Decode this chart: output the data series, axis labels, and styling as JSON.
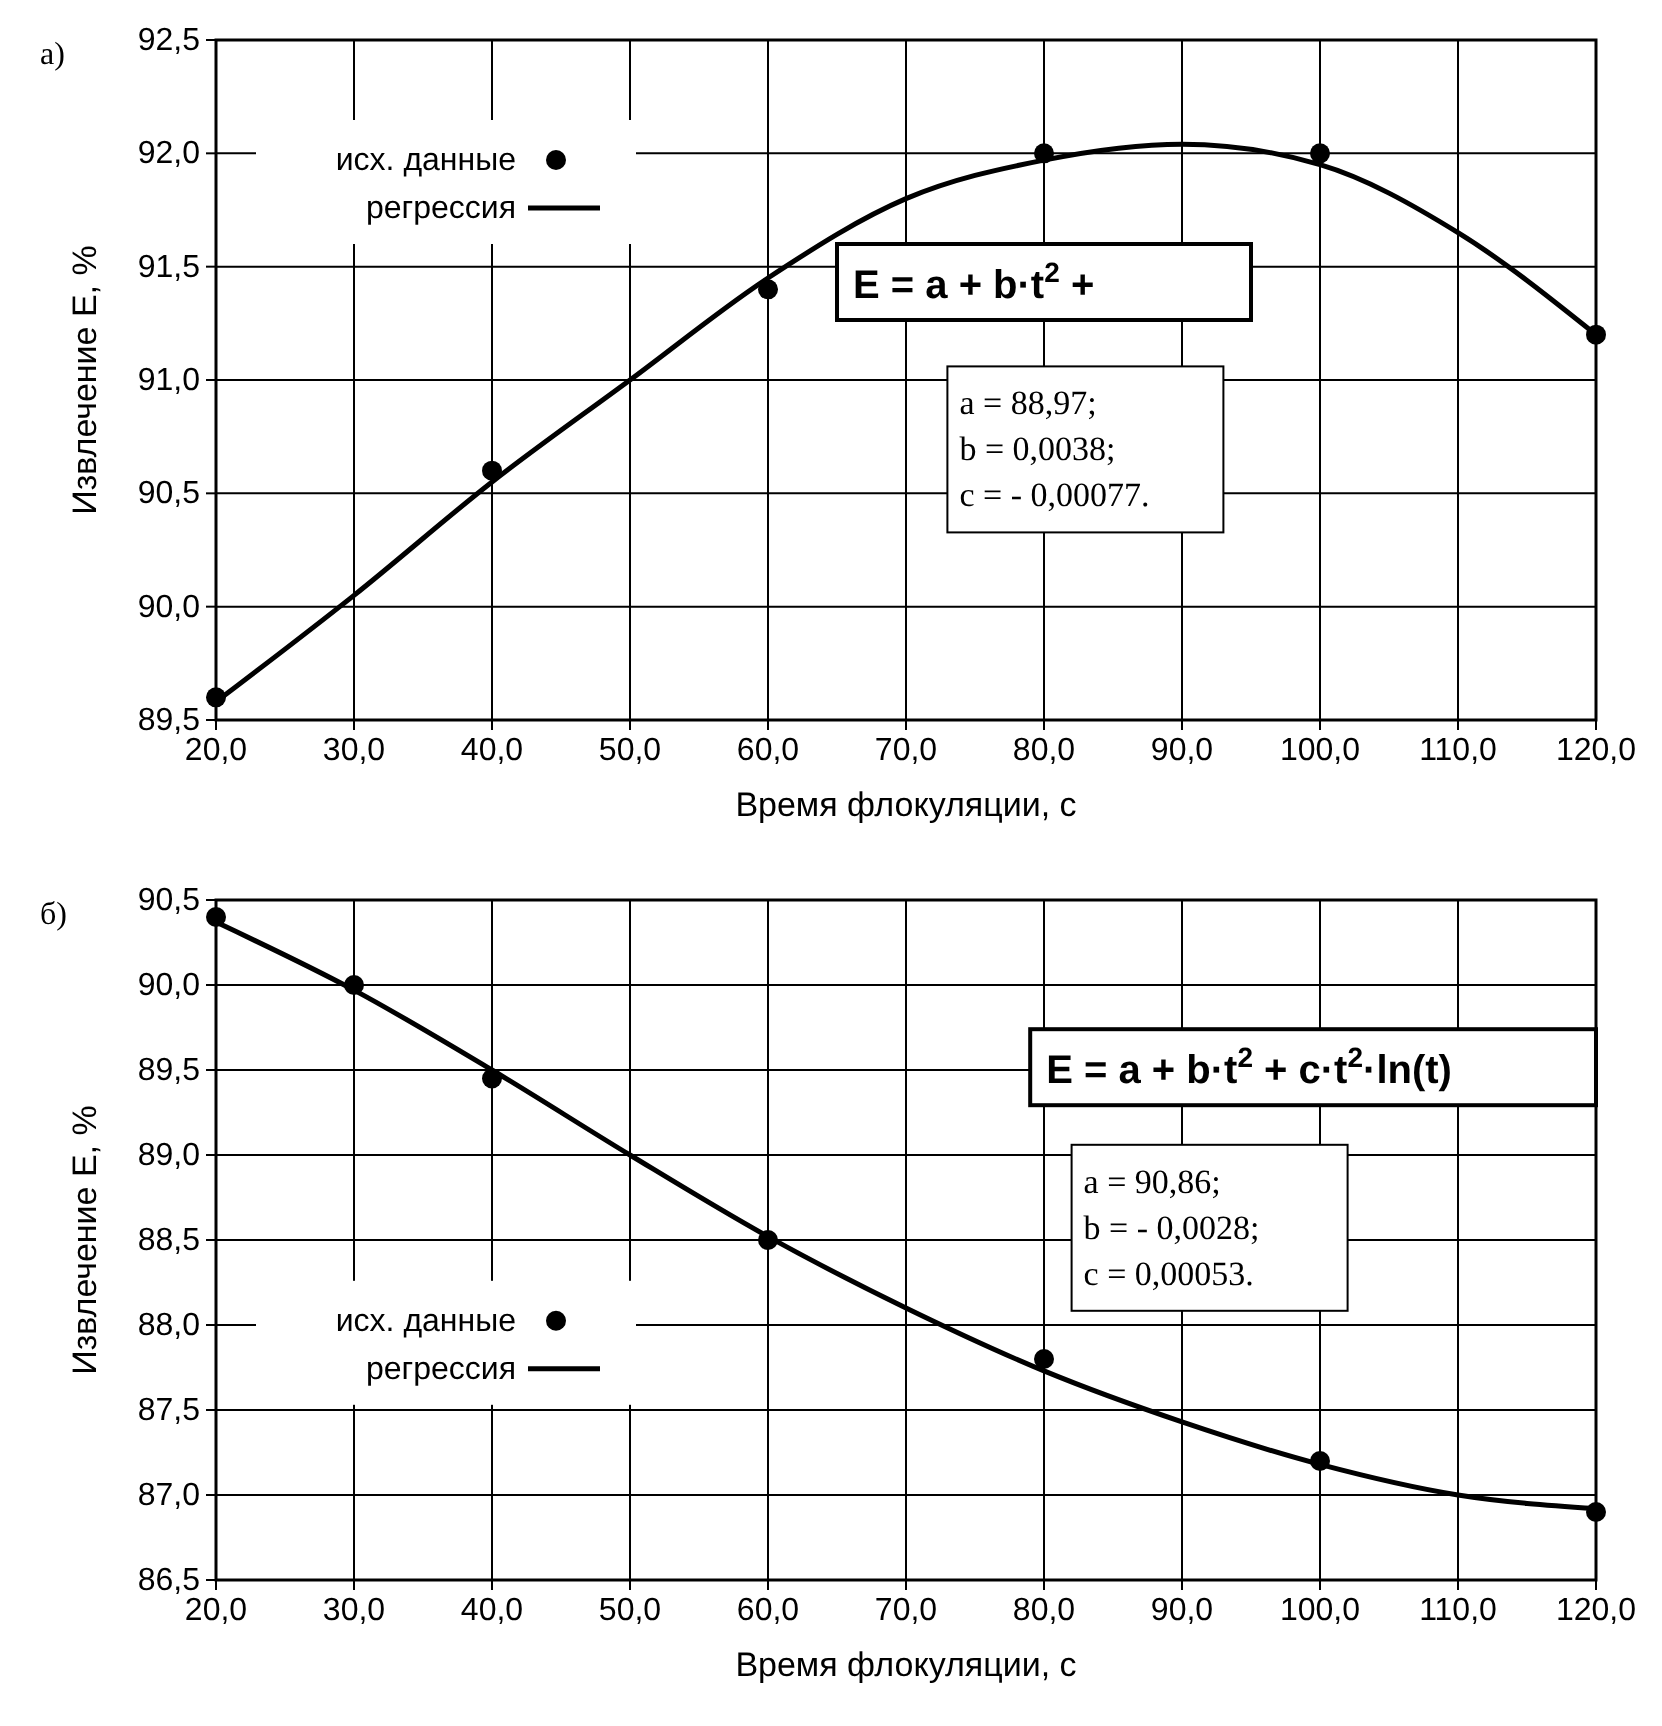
{
  "chart_data": [
    {
      "type": "scatter",
      "xlabel": "Время флокуляции, с",
      "ylabel": "Извлечение E, %",
      "xlim": [
        20,
        120
      ],
      "ylim": [
        89.5,
        92.5
      ],
      "xticks": [
        {
          "value": 20,
          "label": "20,0"
        },
        {
          "value": 30,
          "label": "30,0"
        },
        {
          "value": 40,
          "label": "40,0"
        },
        {
          "value": 50,
          "label": "50,0"
        },
        {
          "value": 60,
          "label": "60,0"
        },
        {
          "value": 70,
          "label": "70,0"
        },
        {
          "value": 80,
          "label": "80,0"
        },
        {
          "value": 90,
          "label": "90,0"
        },
        {
          "value": 100,
          "label": "100,0"
        },
        {
          "value": 110,
          "label": "110,0"
        },
        {
          "value": 120,
          "label": "120,0"
        }
      ],
      "yticks": [
        {
          "value": 89.5,
          "label": "89,5"
        },
        {
          "value": 90,
          "label": "90,0"
        },
        {
          "value": 90.5,
          "label": "90,5"
        },
        {
          "value": 91,
          "label": "91,0"
        },
        {
          "value": 91.5,
          "label": "91,5"
        },
        {
          "value": 92,
          "label": "92,0"
        },
        {
          "value": 92.5,
          "label": "92,5"
        }
      ],
      "grid": true,
      "legend": "top left",
      "series": [
        {
          "name": "исх. данные",
          "type": "scatter",
          "marker": "circle",
          "color": "#000000",
          "x": [
            20,
            40,
            60,
            80,
            100,
            120
          ],
          "values": [
            89.6,
            90.6,
            91.4,
            92.0,
            92.0,
            91.2
          ]
        },
        {
          "name": "регрессия",
          "type": "line",
          "color": "#000000",
          "x": [
            20,
            30,
            40,
            50,
            60,
            70,
            80,
            90,
            100,
            110,
            120
          ],
          "values": [
            89.58,
            90.05,
            90.55,
            91.0,
            91.45,
            91.8,
            91.97,
            92.04,
            91.95,
            91.65,
            91.2
          ]
        }
      ],
      "annotations": [
        "а)",
        "E = a + b·t$^{2}$ +",
        "a =  88,97;\nb = 0,0038;\nc = - 0,00077."
      ]
    },
    {
      "type": "scatter",
      "xlabel": "Время флокуляции, с",
      "ylabel": "Извлечение E, %",
      "xlim": [
        20,
        120
      ],
      "ylim": [
        86.5,
        90.5
      ],
      "xticks": [
        {
          "value": 20,
          "label": "20,0"
        },
        {
          "value": 30,
          "label": "30,0"
        },
        {
          "value": 40,
          "label": "40,0"
        },
        {
          "value": 50,
          "label": "50,0"
        },
        {
          "value": 60,
          "label": "60,0"
        },
        {
          "value": 70,
          "label": "70,0"
        },
        {
          "value": 80,
          "label": "80,0"
        },
        {
          "value": 90,
          "label": "90,0"
        },
        {
          "value": 100,
          "label": "100,0"
        },
        {
          "value": 110,
          "label": "110,0"
        },
        {
          "value": 120,
          "label": "120,0"
        }
      ],
      "yticks": [
        {
          "value": 86.5,
          "label": "86,5"
        },
        {
          "value": 87,
          "label": "87,0"
        },
        {
          "value": 87.5,
          "label": "87,5"
        },
        {
          "value": 88,
          "label": "88,0"
        },
        {
          "value": 88.5,
          "label": "88,5"
        },
        {
          "value": 89,
          "label": "89,0"
        },
        {
          "value": 89.5,
          "label": "89,5"
        },
        {
          "value": 90,
          "label": "90,0"
        },
        {
          "value": 90.5,
          "label": "90,5"
        }
      ],
      "grid": true,
      "legend": "bottom left",
      "series": [
        {
          "name": "исх. данные",
          "type": "scatter",
          "marker": "circle",
          "color": "#000000",
          "x": [
            20,
            30,
            40,
            60,
            80,
            100,
            120
          ],
          "values": [
            90.4,
            90.0,
            89.45,
            88.5,
            87.8,
            87.2,
            86.9
          ]
        },
        {
          "name": "регрессия",
          "type": "line",
          "color": "#000000",
          "x": [
            20,
            30,
            40,
            50,
            60,
            70,
            80,
            90,
            100,
            110,
            120
          ],
          "values": [
            90.37,
            89.97,
            89.5,
            89.0,
            88.52,
            88.1,
            87.73,
            87.43,
            87.18,
            87.0,
            86.92
          ]
        }
      ],
      "annotations": [
        "б)",
        "E = a + b·t$^{2}$ + c·t$^{2}$·ln(t)",
        "a =  90,86;\nb = - 0,0028;\nc =  0,00053."
      ]
    }
  ]
}
